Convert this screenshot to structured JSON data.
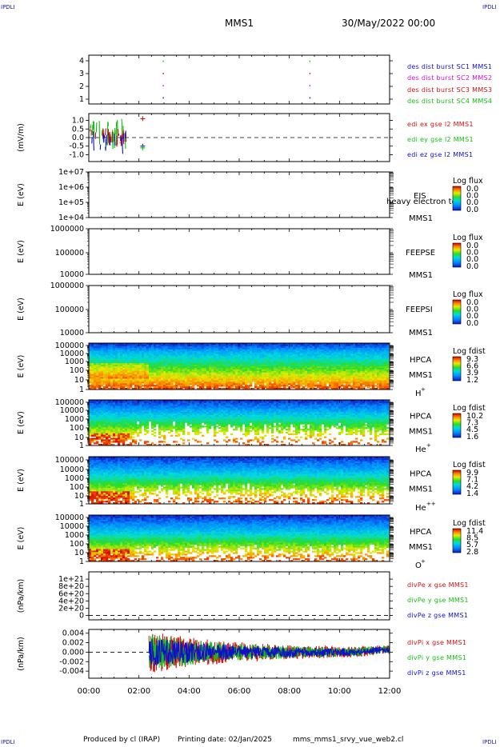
{
  "header": {
    "corner_tl": "IPDLI",
    "corner_tr": "IPDLI",
    "corner_bl": "IPDLI",
    "corner_br": "IPDLI",
    "spacecraft": "MMS1",
    "date": "30/May/2022 00:00"
  },
  "footer": {
    "produced_by": "Produced by cl (IRAP)",
    "printing_date": "Printing date: 02/Jan/2025",
    "filename": "mms_mms1_srvy_vue_web2.cl"
  },
  "colors": {
    "blue": "#1010c8",
    "magenta": "#d010d0",
    "red": "#d01010",
    "green": "#10c010",
    "frame": "#000000"
  },
  "chart_data": [
    {
      "type": "scatter",
      "id": "burst",
      "ylim": [
        0.5,
        4.5
      ],
      "yticks": [
        "1",
        "2",
        "3",
        "4"
      ],
      "series": [
        {
          "name": "des dist burst SC1 MMS1",
          "color": "#1010c8",
          "y": 1
        },
        {
          "name": "des dist burst SC2 MMS2",
          "color": "#d010d0",
          "y": 2
        },
        {
          "name": "des dist burst SC3 MMS3",
          "color": "#d01010",
          "y": 3
        },
        {
          "name": "des dist burst SC4 MMS4",
          "color": "#10c010",
          "y": 4
        }
      ],
      "points_x_hours": [
        2.95,
        8.8
      ]
    },
    {
      "type": "line",
      "id": "edi",
      "ylabel": "(mV/m)",
      "ylim": [
        -1.4,
        1.4
      ],
      "yticks": [
        "1.0",
        "0.5",
        "0.0",
        "-0.5",
        "-1.0"
      ],
      "ytick_values": [
        1.0,
        0.5,
        0.0,
        -0.5,
        -1.0
      ],
      "series": [
        {
          "name": "edi ex gse l2 MMS1",
          "color": "#d01010"
        },
        {
          "name": "edi ey gse l2 MMS1",
          "color": "#10c010"
        },
        {
          "name": "edi ez gse l2 MMS1",
          "color": "#1010c8"
        }
      ],
      "data_x_range_hours": [
        0.0,
        1.5
      ],
      "crosses": [
        {
          "x": 2.15,
          "y": 1.1,
          "color": "#d01010"
        },
        {
          "x": 2.15,
          "y": -0.5,
          "color": "#1010c8"
        },
        {
          "x": 2.15,
          "y": -0.6,
          "color": "#10c010"
        }
      ]
    },
    {
      "type": "heatmap",
      "id": "eis",
      "ylabel": "E (eV)",
      "yticks": [
        "1e+07",
        "1e+06",
        "1e+05",
        "1e+04"
      ],
      "right_labels": [
        "EIS",
        "MMS1"
      ],
      "overlap_text": "heavy electron to",
      "colorbar": {
        "title": "Log flux",
        "labels": [
          "0.0",
          "0.0",
          "0.0",
          "0.0"
        ]
      },
      "empty": true
    },
    {
      "type": "heatmap",
      "id": "feepse",
      "ylabel": "E (eV)",
      "yticks": [
        "1000000",
        "100000",
        "10000"
      ],
      "right_labels": [
        "FEEPSE",
        "MMS1"
      ],
      "colorbar": {
        "title": "Log flux",
        "labels": [
          "0.0",
          "0.0",
          "0.0",
          "0.0"
        ]
      },
      "empty": true
    },
    {
      "type": "heatmap",
      "id": "feepsi",
      "ylabel": "E (eV)",
      "yticks": [
        "1000000",
        "100000",
        "10000"
      ],
      "right_labels": [
        "FEEPSI",
        "MMS1"
      ],
      "colorbar": {
        "title": "Log flux",
        "labels": [
          "0.0",
          "0.0",
          "0.0",
          "0.0"
        ]
      },
      "empty": true
    },
    {
      "type": "heatmap",
      "id": "hpca_h",
      "ylabel": "E (eV)",
      "yticks": [
        "100000",
        "10000",
        "1000",
        "100",
        "10",
        "1"
      ],
      "right_labels": [
        "HPCA",
        "MMS1"
      ],
      "species": "H",
      "species_sup": "+",
      "colorbar": {
        "title": "Log fdist",
        "labels": [
          "9.3",
          "6.6",
          "3.9",
          "1.2"
        ]
      }
    },
    {
      "type": "heatmap",
      "id": "hpca_he1",
      "ylabel": "E (eV)",
      "yticks": [
        "100000",
        "10000",
        "1000",
        "100",
        "10",
        "1"
      ],
      "right_labels": [
        "HPCA",
        "MMS1"
      ],
      "species": "He",
      "species_sup": "+",
      "colorbar": {
        "title": "Log fdist",
        "labels": [
          "10.2",
          "7.3",
          "4.5",
          "1.6"
        ]
      }
    },
    {
      "type": "heatmap",
      "id": "hpca_he2",
      "ylabel": "E (eV)",
      "yticks": [
        "100000",
        "10000",
        "1000",
        "100",
        "10",
        "1"
      ],
      "right_labels": [
        "HPCA",
        "MMS1"
      ],
      "species": "He",
      "species_sup": "++",
      "colorbar": {
        "title": "Log fdist",
        "labels": [
          "9.9",
          "7.1",
          "4.2",
          "1.4"
        ]
      }
    },
    {
      "type": "heatmap",
      "id": "hpca_o",
      "ylabel": "E (eV)",
      "yticks": [
        "100000",
        "10000",
        "1000",
        "100",
        "10",
        "1"
      ],
      "right_labels": [
        "HPCA",
        "MMS1"
      ],
      "species": "O",
      "species_sup": "+",
      "colorbar": {
        "title": "Log fdist",
        "labels": [
          "11.4",
          "8.5",
          "5.7",
          "2.8"
        ]
      }
    },
    {
      "type": "line",
      "id": "divpe",
      "ylabel": "(nPa/km)",
      "ylim": [
        -1.2e+20,
        1.2e+21
      ],
      "yticks": [
        "1e+21",
        "8e+20",
        "6e+20",
        "4e+20",
        "2e+20",
        "0"
      ],
      "ytick_values": [
        1e+21,
        8e+20,
        6e+20,
        4e+20,
        2e+20,
        0
      ],
      "series": [
        {
          "name": "divPe x gse MMS1",
          "color": "#d01010"
        },
        {
          "name": "divPe y gse MMS1",
          "color": "#10c010"
        },
        {
          "name": "divPe z gse MMS1",
          "color": "#1010c8"
        }
      ],
      "empty": true
    },
    {
      "type": "line",
      "id": "divpi",
      "ylabel": "(nPa/km)",
      "ylim": [
        -0.0055,
        0.0048
      ],
      "yticks": [
        "0.004",
        "0.002",
        "0.000",
        "-0.002",
        "-0.004"
      ],
      "ytick_values": [
        0.004,
        0.002,
        0.0,
        -0.002,
        -0.004
      ],
      "series": [
        {
          "name": "divPi x gse MMS1",
          "color": "#d01010"
        },
        {
          "name": "divPi y gse MMS1",
          "color": "#10c010"
        },
        {
          "name": "divPi z gse MMS1",
          "color": "#1010c8"
        }
      ],
      "data_x_range_hours": [
        2.4,
        12.0
      ]
    }
  ],
  "x_axis": {
    "range_hours": [
      0,
      12
    ],
    "ticks": [
      "00:00",
      "02:00",
      "04:00",
      "06:00",
      "08:00",
      "10:00",
      "12:00"
    ]
  }
}
